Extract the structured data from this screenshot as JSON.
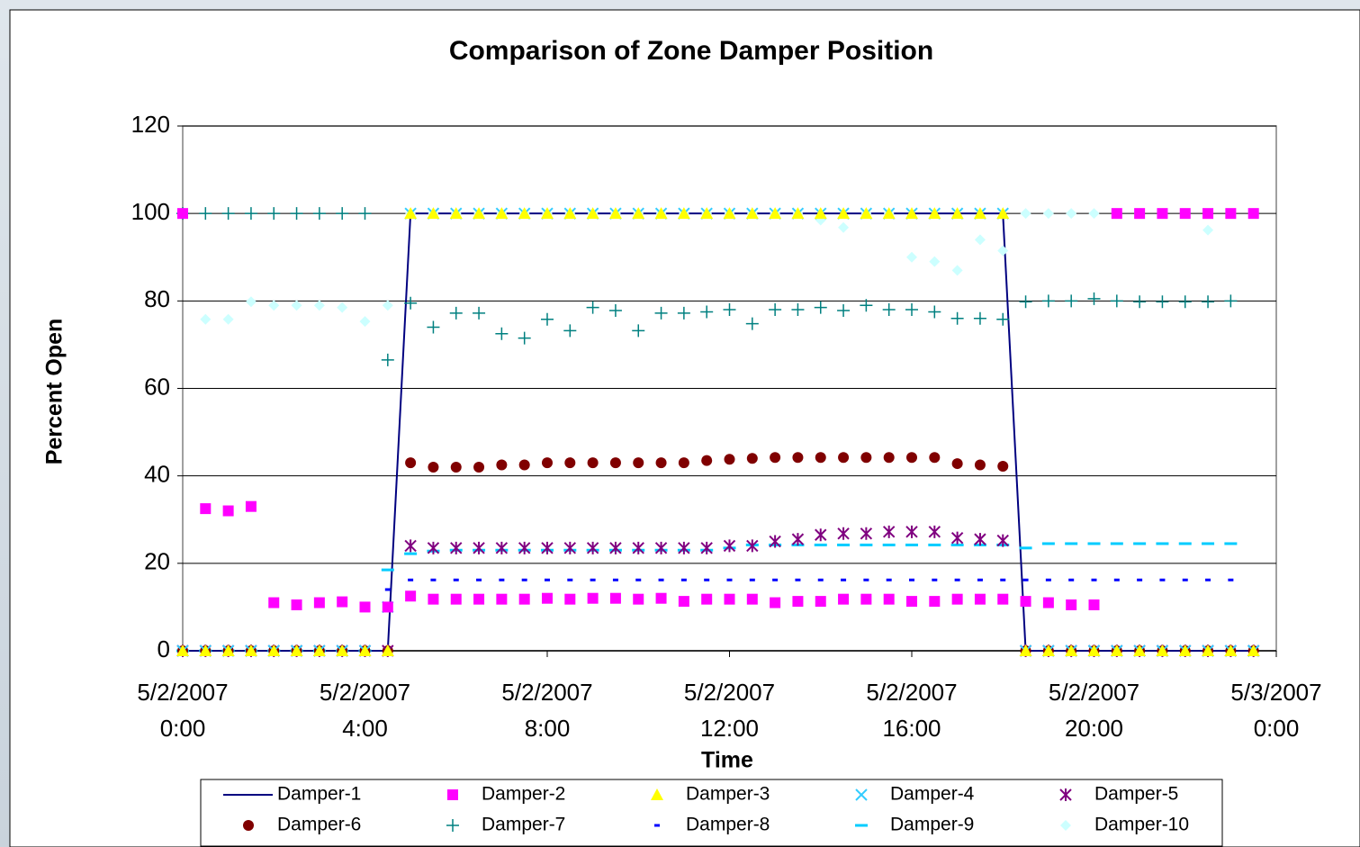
{
  "chart_data": {
    "type": "scatter",
    "title": "Comparison of Zone Damper Position",
    "x_label": "Time",
    "y_label": "Percent Open",
    "x": [
      0,
      0.5,
      1,
      1.5,
      2,
      2.5,
      3,
      3.5,
      4,
      4.5,
      5,
      5.5,
      6,
      6.5,
      7,
      7.5,
      8,
      8.5,
      9,
      9.5,
      10,
      10.5,
      11,
      11.5,
      12,
      12.5,
      13,
      13.5,
      14,
      14.5,
      15,
      15.5,
      16,
      16.5,
      17,
      17.5,
      18,
      18.5,
      19,
      19.5,
      20,
      20.5,
      21,
      21.5,
      22,
      22.5,
      23,
      23.5
    ],
    "xlim": [
      0,
      24
    ],
    "xticks": [
      {
        "value": 0,
        "label": "5/2/2007 0:00"
      },
      {
        "value": 4,
        "label": "5/2/2007 4:00"
      },
      {
        "value": 8,
        "label": "5/2/2007 8:00"
      },
      {
        "value": 12,
        "label": "5/2/2007 12:00"
      },
      {
        "value": 16,
        "label": "5/2/2007 16:00"
      },
      {
        "value": 20,
        "label": "5/2/2007 20:00"
      },
      {
        "value": 24,
        "label": "5/3/2007 0:00"
      }
    ],
    "ylim": [
      0,
      120
    ],
    "yticks": [
      0,
      20,
      40,
      60,
      80,
      100,
      120
    ],
    "grid": true,
    "legend": "bottom",
    "series": [
      {
        "name": "Damper-1",
        "color": "#000080",
        "marker": "line",
        "values": [
          0,
          0,
          0,
          0,
          0,
          0,
          0,
          0,
          0,
          0,
          100,
          100,
          100,
          100,
          100,
          100,
          100,
          100,
          100,
          100,
          100,
          100,
          100,
          100,
          100,
          100,
          100,
          100,
          100,
          100,
          100,
          100,
          100,
          100,
          100,
          100,
          100,
          0,
          0,
          0,
          0,
          0,
          0,
          0,
          0,
          0,
          0,
          0
        ]
      },
      {
        "name": "Damper-2",
        "color": "#ff00ff",
        "marker": "square",
        "values": [
          100,
          32.5,
          32,
          33,
          11,
          10.5,
          11,
          11.2,
          10,
          10,
          12.5,
          11.8,
          11.8,
          11.8,
          11.8,
          11.8,
          12,
          11.8,
          12,
          12,
          11.8,
          12,
          11.3,
          11.8,
          11.8,
          11.8,
          11,
          11.3,
          11.3,
          11.8,
          11.8,
          11.8,
          11.3,
          11.3,
          11.8,
          11.8,
          11.8,
          11.3,
          11,
          10.5,
          10.5,
          100,
          100,
          100,
          100,
          100,
          100,
          100
        ]
      },
      {
        "name": "Damper-3",
        "color": "#ffff00",
        "marker": "triangle",
        "values": [
          0,
          0,
          0,
          0,
          0,
          0,
          0,
          0,
          0,
          0,
          100,
          100,
          100,
          100,
          100,
          100,
          100,
          100,
          100,
          100,
          100,
          100,
          100,
          100,
          100,
          100,
          100,
          100,
          100,
          100,
          100,
          100,
          100,
          100,
          100,
          100,
          100,
          0,
          0,
          0,
          0,
          0,
          0,
          0,
          0,
          0,
          0,
          0
        ]
      },
      {
        "name": "Damper-4",
        "color": "#33ccff",
        "marker": "x",
        "values": [
          0,
          0,
          0,
          0,
          0,
          0,
          0,
          0,
          0,
          10,
          100,
          100,
          100,
          100,
          100,
          100,
          100,
          100,
          100,
          100,
          100,
          100,
          100,
          100,
          100,
          100,
          100,
          100,
          100,
          100,
          100,
          100,
          100,
          100,
          100,
          100,
          100,
          0,
          0,
          0,
          0,
          0,
          0,
          0,
          0,
          0,
          0,
          0
        ]
      },
      {
        "name": "Damper-5",
        "color": "#800080",
        "marker": "star",
        "values": [
          0,
          0,
          0,
          0,
          0,
          0,
          0,
          0,
          0,
          0,
          24,
          23.5,
          23.5,
          23.5,
          23.5,
          23.5,
          23.5,
          23.5,
          23.5,
          23.5,
          23.5,
          23.5,
          23.5,
          23.5,
          24,
          24,
          25,
          25.5,
          26.5,
          26.8,
          26.8,
          27.2,
          27.2,
          27.2,
          25.8,
          25.5,
          25.2,
          0,
          0,
          0,
          0,
          0,
          0,
          0,
          0,
          0,
          0,
          0
        ]
      },
      {
        "name": "Damper-6",
        "color": "#800000",
        "marker": "circle",
        "values": [
          0,
          0,
          0,
          0,
          0,
          0,
          0,
          0,
          0,
          0,
          43,
          42,
          42,
          42,
          42.5,
          42.5,
          43,
          43,
          43,
          43,
          43,
          43,
          43,
          43.5,
          43.8,
          44,
          44.2,
          44.2,
          44.2,
          44.2,
          44.2,
          44.2,
          44.2,
          44.2,
          42.8,
          42.5,
          42.2,
          0,
          0,
          0,
          0,
          0,
          0,
          0,
          0,
          0,
          0,
          0
        ]
      },
      {
        "name": "Damper-7",
        "color": "#008080",
        "marker": "plus",
        "values": [
          100,
          100,
          100,
          100,
          100,
          100,
          100,
          100,
          100,
          66.5,
          79.5,
          74,
          77.2,
          77.2,
          72.5,
          71.5,
          75.8,
          73.2,
          78.5,
          77.8,
          73.2,
          77.2,
          77.2,
          77.5,
          78,
          74.8,
          78,
          78,
          78.5,
          77.8,
          79,
          78,
          78,
          77.5,
          76,
          76,
          75.8,
          79.8,
          80,
          80,
          80.5,
          80,
          79.8,
          79.8,
          79.8,
          79.8,
          80,
          null
        ]
      },
      {
        "name": "Damper-8",
        "color": "#0000ff",
        "marker": "dash",
        "values": [
          0,
          0,
          0,
          0,
          0,
          0,
          0,
          0,
          0,
          14,
          16.2,
          16.2,
          16.2,
          16.2,
          16.2,
          16.2,
          16.2,
          16.2,
          16.2,
          16.2,
          16.2,
          16.2,
          16.2,
          16.2,
          16.2,
          16.2,
          16.2,
          16.2,
          16.2,
          16.2,
          16.2,
          16.2,
          16.2,
          16.2,
          16.2,
          16.2,
          16.2,
          16.2,
          16.2,
          16.2,
          16.2,
          16.2,
          16.2,
          16.2,
          16.2,
          16.2,
          16.2,
          null
        ]
      },
      {
        "name": "Damper-9",
        "color": "#00ccff",
        "marker": "longdash",
        "values": [
          0,
          0,
          0,
          0,
          0,
          0,
          0,
          0,
          0,
          18.5,
          22.2,
          22.8,
          23,
          23,
          23,
          23,
          23,
          23,
          23,
          23,
          23,
          23,
          23,
          23,
          23.5,
          24.2,
          24.2,
          24.2,
          24.2,
          24.2,
          24.2,
          24.2,
          24.2,
          24.2,
          24.2,
          24.2,
          24.2,
          23.5,
          24.5,
          24.5,
          24.5,
          24.5,
          24.5,
          24.5,
          24.5,
          24.5,
          24.5,
          null
        ]
      },
      {
        "name": "Damper-10",
        "color": "#ccffff",
        "marker": "diamond",
        "values": [
          100,
          75.8,
          75.8,
          79.8,
          79,
          79,
          79,
          78.5,
          75.3,
          79,
          100,
          100,
          100,
          100,
          100,
          100,
          100,
          100,
          100,
          100,
          100,
          100,
          100,
          100,
          100,
          100,
          100,
          100,
          98.5,
          96.8,
          100,
          100,
          90,
          89,
          87,
          94,
          91.5,
          100,
          100,
          100,
          100,
          100,
          100,
          100,
          100,
          96.2,
          100,
          100
        ]
      }
    ]
  }
}
